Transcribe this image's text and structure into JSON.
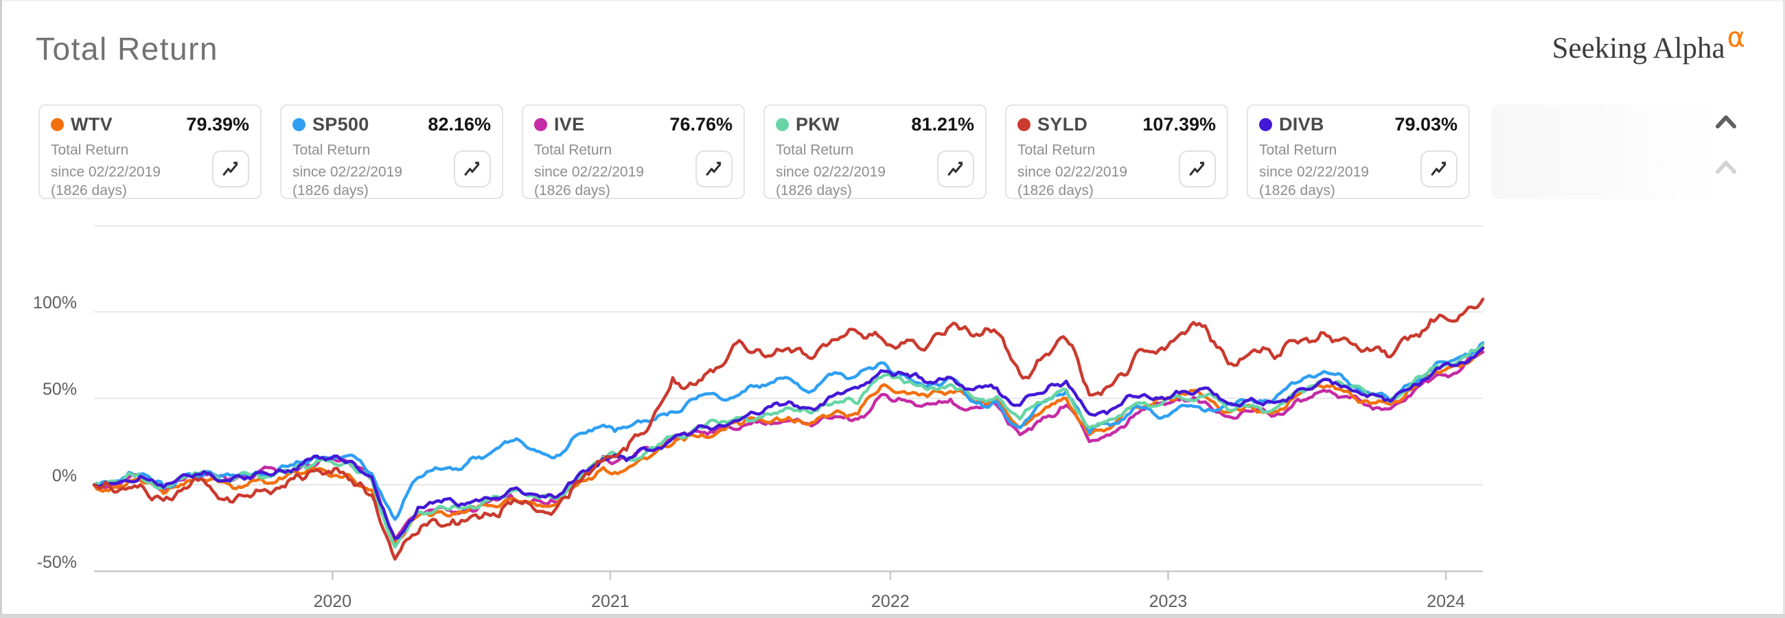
{
  "header": {
    "title": "Total Return",
    "brand": {
      "name": "Seeking Alpha",
      "alpha_symbol": "α",
      "alpha_color": "#ff7a00"
    }
  },
  "legend": {
    "subtitle": "Total Return",
    "since_label": "since 02/22/2019",
    "days_label": "(1826 days)",
    "chart_button_icon": "trend-line-icon",
    "scroll_up_active_color": "#5f5f5f",
    "scroll_up_disabled_color": "#d3d3d3",
    "cards": [
      {
        "ticker": "WTV",
        "value": "79.39%",
        "color": "#f2700d"
      },
      {
        "ticker": "SP500",
        "value": "82.16%",
        "color": "#2f9ff3"
      },
      {
        "ticker": "IVE",
        "value": "76.76%",
        "color": "#c52ba6"
      },
      {
        "ticker": "PKW",
        "value": "81.21%",
        "color": "#68d5a6"
      },
      {
        "ticker": "SYLD",
        "value": "107.39%",
        "color": "#ca3a2e"
      },
      {
        "ticker": "DIVB",
        "value": "79.03%",
        "color": "#4318d6"
      }
    ]
  },
  "chart_data": {
    "type": "line",
    "title": "Total Return",
    "start_date": "02/22/2019",
    "duration_days": 1826,
    "x_unit": "months since 2019-02-22",
    "x_tick_labels": [
      "2020",
      "2021",
      "2022",
      "2023",
      "2024"
    ],
    "x_tick_month_positions": [
      10.3,
      22.3,
      34.4,
      46.4,
      58.4
    ],
    "y_tick_labels": [
      "100%",
      "50%",
      "0%",
      "-50%"
    ],
    "y_tick_values": [
      100,
      50,
      0,
      -50
    ],
    "ylim": [
      -50,
      150
    ],
    "grid": true,
    "legend_position": "top-cards",
    "draw_order": [
      "IVE",
      "WTV",
      "SP500",
      "PKW",
      "DIVB",
      "SYLD"
    ],
    "series": [
      {
        "name": "WTV",
        "color": "#f2700d",
        "final_value": 79.39,
        "monthly_values": [
          0,
          -1.5,
          2.5,
          -5,
          2,
          3,
          -2,
          2.5,
          4,
          6.5,
          8,
          6,
          -3,
          -35,
          -18,
          -15.5,
          -16,
          -12,
          -8,
          -10.5,
          -11.5,
          2,
          10,
          9,
          16,
          23.5,
          28,
          31,
          35,
          36.5,
          39,
          36,
          42,
          41,
          57,
          54,
          51,
          54,
          48,
          49.5,
          33,
          43,
          50,
          29,
          34,
          45,
          50,
          53,
          51,
          42,
          45,
          42.5,
          52,
          57,
          54,
          48.5,
          46.5,
          56,
          65.5,
          68.5,
          79.39
        ]
      },
      {
        "name": "SP500",
        "color": "#2f9ff3",
        "final_value": 82.16,
        "monthly_values": [
          0,
          2.3,
          6.1,
          -0.5,
          6.2,
          7.6,
          5.6,
          7.4,
          9.5,
          13,
          15.7,
          17,
          6.5,
          -20,
          4.2,
          8.9,
          11,
          17.2,
          25.3,
          20.4,
          17.1,
          29.8,
          34.5,
          33.1,
          36.6,
          42.2,
          49.7,
          50.5,
          53.8,
          57.3,
          61.7,
          54.2,
          64.9,
          63.7,
          70.6,
          64,
          57,
          62.2,
          48,
          48.2,
          33,
          47.9,
          54,
          30,
          35,
          45.6,
          38.5,
          46,
          42.5,
          47.1,
          49.4,
          49.7,
          59.3,
          64.3,
          61.4,
          53.7,
          48,
          58,
          70.8,
          74,
          82.16
        ]
      },
      {
        "name": "IVE",
        "color": "#c52ba6",
        "final_value": 76.76,
        "monthly_values": [
          0,
          0.5,
          4.6,
          -2.8,
          4.8,
          6,
          2.6,
          6.2,
          7.8,
          11,
          15.9,
          13,
          3,
          -33,
          -16,
          -13,
          -14.5,
          -10,
          -6,
          -8.5,
          -10,
          4,
          16.5,
          15,
          21,
          27,
          31,
          33,
          34,
          35,
          37,
          34,
          39.5,
          38,
          52,
          49,
          47,
          49.5,
          44.5,
          46,
          29,
          39,
          46,
          25,
          30,
          41,
          47,
          50,
          48,
          39.5,
          42.5,
          40,
          49.5,
          54,
          51,
          46,
          44,
          54,
          63.5,
          66,
          76.76
        ]
      },
      {
        "name": "PKW",
        "color": "#68d5a6",
        "final_value": 81.21,
        "monthly_values": [
          0,
          1.5,
          5.5,
          -2,
          5,
          6,
          3,
          6.5,
          8,
          11.5,
          14,
          12.5,
          3,
          -36,
          -16,
          -12.5,
          -13.5,
          -9,
          -4,
          -6.5,
          -8,
          5,
          16,
          15,
          21,
          28,
          33,
          35.5,
          39,
          41,
          44.5,
          41.5,
          48,
          47,
          62,
          59,
          55,
          58,
          50,
          51,
          38,
          48,
          55,
          33,
          38,
          47,
          46,
          50,
          51.5,
          43,
          46,
          44,
          54,
          60,
          57.5,
          51.5,
          49.5,
          59.5,
          69,
          72,
          81.21
        ]
      },
      {
        "name": "SYLD",
        "color": "#ca3a2e",
        "final_value": 107.39,
        "monthly_values": [
          0,
          -4,
          0,
          -9,
          -2,
          -1,
          -10,
          -3,
          -2,
          3,
          6.5,
          3,
          -6,
          -43,
          -28,
          -24,
          -21,
          -17,
          -11,
          -14,
          -13,
          2,
          14,
          20,
          34,
          62,
          58,
          68,
          82,
          74,
          79,
          73,
          84,
          88,
          85,
          82,
          80,
          92,
          86,
          88,
          64,
          74,
          84,
          52,
          58,
          76,
          78,
          88,
          92,
          70,
          77,
          73,
          82,
          88,
          85,
          79,
          74,
          86,
          96,
          98,
          107.39
        ]
      },
      {
        "name": "DIVB",
        "color": "#4318d6",
        "final_value": 79.03,
        "monthly_values": [
          0,
          1,
          5,
          -1.5,
          5.5,
          6.5,
          4,
          6.8,
          8.5,
          12,
          14.5,
          13.5,
          4.5,
          -31,
          -13,
          -10,
          -11.5,
          -7.5,
          -2.5,
          -5.5,
          -7,
          7,
          15,
          14,
          20,
          27,
          32,
          34.5,
          38.5,
          44,
          48,
          44,
          52,
          56,
          66,
          64,
          59,
          62,
          55,
          56,
          46,
          53,
          60,
          41,
          44,
          51,
          50,
          54,
          56,
          47,
          50,
          47.5,
          55,
          60,
          57,
          51,
          48.5,
          58,
          67.5,
          70.5,
          79.03
        ]
      }
    ]
  }
}
